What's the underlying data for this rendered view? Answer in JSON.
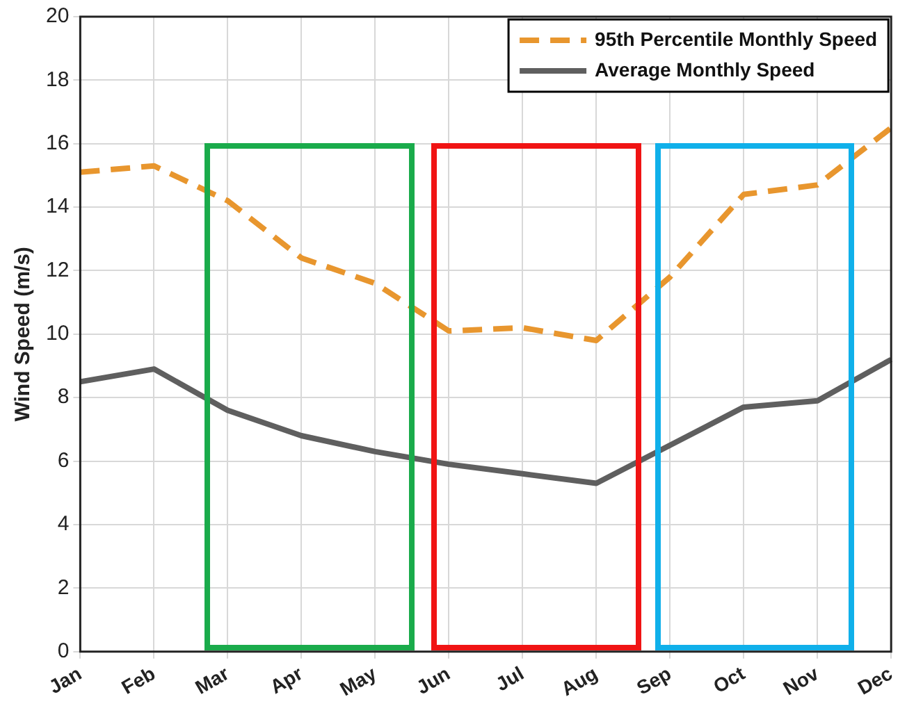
{
  "chart_data": {
    "type": "line",
    "ylabel": "Wind Speed (m/s)",
    "categories": [
      "Jan",
      "Feb",
      "Mar",
      "Apr",
      "May",
      "Jun",
      "Jul",
      "Aug",
      "Sep",
      "Oct",
      "Nov",
      "Dec"
    ],
    "series": [
      {
        "name": "95th Percentile Monthly Speed",
        "color": "#e8962e",
        "line_style": "dashed",
        "values": [
          15.1,
          15.3,
          14.2,
          12.4,
          11.6,
          10.1,
          10.2,
          9.8,
          11.8,
          14.4,
          14.7,
          16.5
        ]
      },
      {
        "name": "Average Monthly Speed",
        "color": "#5f5f5f",
        "line_style": "solid",
        "values": [
          8.5,
          8.9,
          7.6,
          6.8,
          6.3,
          5.9,
          5.6,
          5.3,
          6.5,
          7.7,
          7.9,
          9.2
        ]
      }
    ],
    "ylim": [
      0,
      20
    ],
    "yticks": [
      0,
      2,
      4,
      6,
      8,
      10,
      12,
      14,
      16,
      18,
      20
    ],
    "grid": true,
    "legend": "top right",
    "marker": "none"
  }
}
